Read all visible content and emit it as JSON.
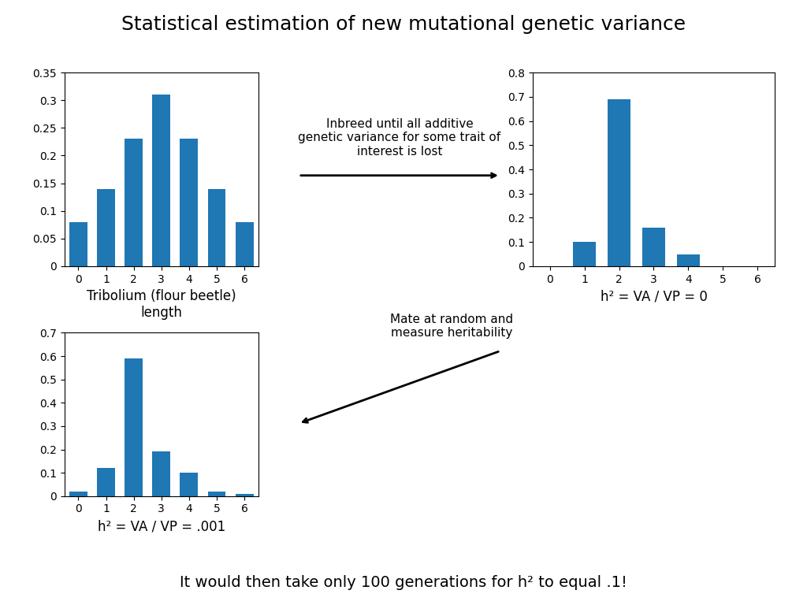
{
  "title": "Statistical estimation of new mutational genetic variance",
  "annotations": [
    "Inbreed until all additive\ngenetic variance for some trait of\ninterest is lost",
    "Mate at random and\nmeasure heritability"
  ],
  "footnote": "It would then take only 100 generations for h² to equal .1!",
  "chart_data": [
    {
      "type": "bar",
      "xlabel": "Tribolium (flour beetle)\nlength",
      "categories": [
        0,
        1,
        2,
        3,
        4,
        5,
        6
      ],
      "values": [
        0.08,
        0.14,
        0.23,
        0.31,
        0.23,
        0.14,
        0.08
      ],
      "ylim": [
        0,
        0.35
      ],
      "yticks": [
        0,
        0.05,
        0.1,
        0.15,
        0.2,
        0.25,
        0.3,
        0.35
      ]
    },
    {
      "type": "bar",
      "xlabel": "h² = VA / VP = 0",
      "categories": [
        0,
        1,
        2,
        3,
        4,
        5,
        6
      ],
      "values": [
        0.0,
        0.1,
        0.69,
        0.16,
        0.05,
        0.0,
        0.0
      ],
      "ylim": [
        0,
        0.8
      ],
      "yticks": [
        0,
        0.1,
        0.2,
        0.3,
        0.4,
        0.5,
        0.6,
        0.7,
        0.8
      ]
    },
    {
      "type": "bar",
      "xlabel": "h² = VA / VP = .001",
      "categories": [
        0,
        1,
        2,
        3,
        4,
        5,
        6
      ],
      "values": [
        0.02,
        0.12,
        0.59,
        0.19,
        0.1,
        0.02,
        0.01
      ],
      "ylim": [
        0,
        0.7
      ],
      "yticks": [
        0,
        0.1,
        0.2,
        0.3,
        0.4,
        0.5,
        0.6,
        0.7
      ]
    }
  ]
}
